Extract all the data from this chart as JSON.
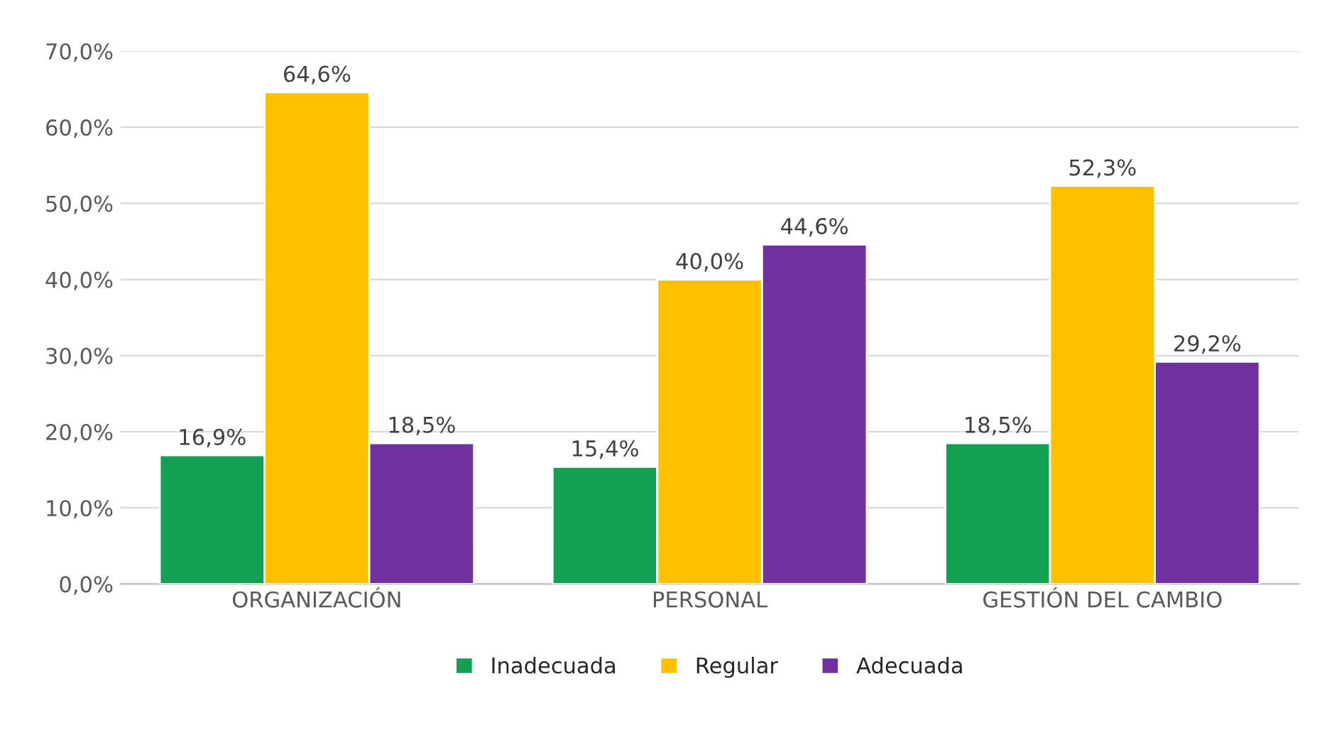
{
  "chart_data": {
    "type": "bar",
    "categories": [
      "ORGANIZACIÓN",
      "PERSONAL",
      "GESTIÓN DEL CAMBIO"
    ],
    "series": [
      {
        "name": "Inadecuada",
        "color": "#13a052",
        "values": [
          16.9,
          15.4,
          18.5
        ],
        "value_labels": [
          "16,9%",
          "15,4%",
          "18,5%"
        ]
      },
      {
        "name": "Regular",
        "color": "#ffc000",
        "values": [
          64.6,
          40.0,
          52.3
        ],
        "value_labels": [
          "64,6%",
          "40,0%",
          "52,3%"
        ]
      },
      {
        "name": "Adecuada",
        "color": "#7030a0",
        "values": [
          18.5,
          44.6,
          29.2
        ],
        "value_labels": [
          "18,5%",
          "44,6%",
          "29,2%"
        ]
      }
    ],
    "ylim": [
      0,
      70
    ],
    "yticks": [
      {
        "value": 0,
        "label": "0,0%"
      },
      {
        "value": 10,
        "label": "10,0%"
      },
      {
        "value": 20,
        "label": "20,0%"
      },
      {
        "value": 30,
        "label": "30,0%"
      },
      {
        "value": 40,
        "label": "40,0%"
      },
      {
        "value": 50,
        "label": "50,0%"
      },
      {
        "value": 60,
        "label": "60,0%"
      },
      {
        "value": 70,
        "label": "70,0%"
      }
    ],
    "grid": "y",
    "legend": "bottom"
  }
}
